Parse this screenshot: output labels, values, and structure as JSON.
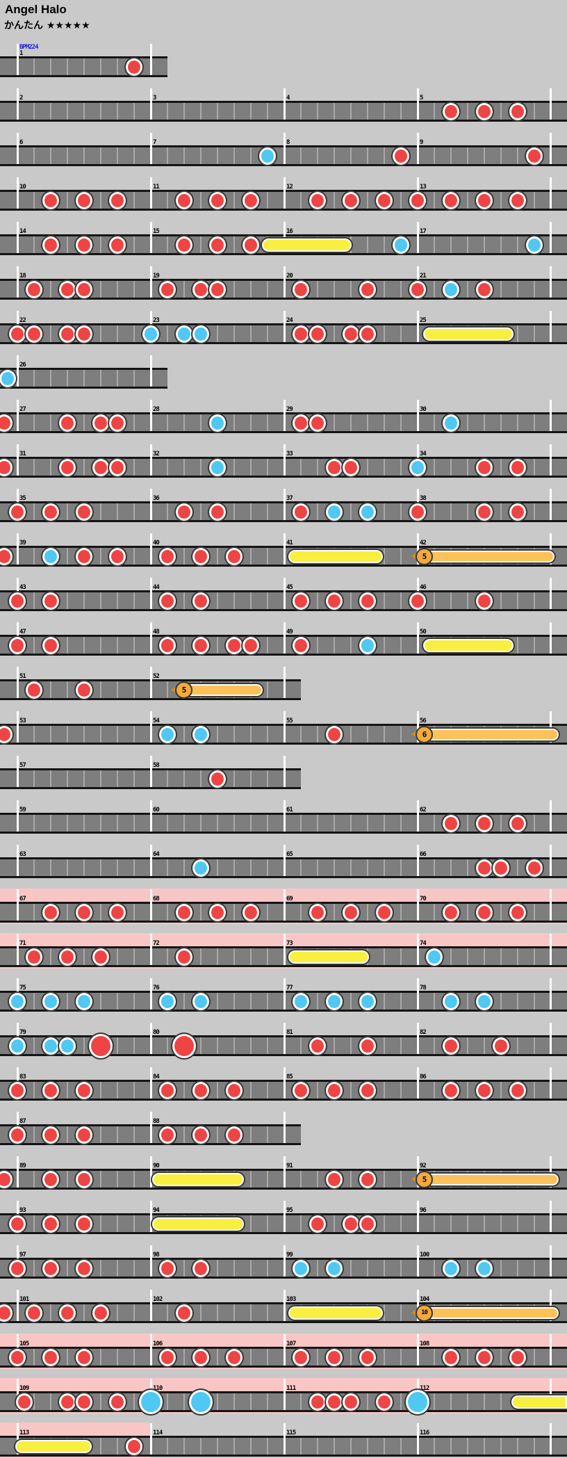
{
  "header": {
    "title": "Angel Halo",
    "difficulty_label": "かんたん",
    "stars": "★★★★★",
    "bpm_label": "BPM224"
  },
  "colors": {
    "don": "#ef4444",
    "ka": "#4fc8f2",
    "drumroll": "#f8ef41",
    "balloon_bar": "#fcc159",
    "balloon_head": "#f2a93e",
    "gogo_background": "#f9c6c6",
    "lane": "#7e7e7e",
    "page_background": "#c9c9c9"
  },
  "legend": {
    "don": "red-note",
    "ka": "blue-note",
    "donB": "big-red-note",
    "kaB": "big-blue-note",
    "roll": "drumroll-bar",
    "rollF": "drumroll-bar-continues",
    "bal": "balloon-note"
  },
  "rows": [
    {
      "start": 1,
      "mcount": 1,
      "bpm": true,
      "measures": [
        [
          [
            "don",
            7
          ]
        ]
      ]
    },
    {
      "start": 2,
      "mcount": 4,
      "measures": [
        [],
        [],
        [],
        [
          [
            "don",
            2
          ],
          [
            "don",
            4
          ],
          [
            "don",
            6
          ]
        ]
      ]
    },
    {
      "start": 6,
      "mcount": 4,
      "measures": [
        [],
        [
          [
            "ka",
            7
          ]
        ],
        [
          [
            "don",
            7
          ]
        ],
        [
          [
            "don",
            7
          ]
        ]
      ]
    },
    {
      "start": 10,
      "mcount": 4,
      "measures": [
        [
          [
            "don",
            2
          ],
          [
            "don",
            4
          ],
          [
            "don",
            6
          ]
        ],
        [
          [
            "don",
            2
          ],
          [
            "don",
            4
          ],
          [
            "don",
            6
          ]
        ],
        [
          [
            "don",
            2
          ],
          [
            "don",
            4
          ],
          [
            "don",
            6
          ]
        ],
        [
          [
            "don",
            0
          ],
          [
            "don",
            2
          ],
          [
            "don",
            4
          ],
          [
            "don",
            6
          ]
        ]
      ]
    },
    {
      "start": 14,
      "mcount": 4,
      "measures": [
        [
          [
            "don",
            2
          ],
          [
            "don",
            4
          ],
          [
            "don",
            6
          ]
        ],
        [
          [
            "don",
            2
          ],
          [
            "don",
            4
          ],
          [
            "don",
            6
          ]
        ],
        [
          [
            "roll",
            375,
            508
          ],
          [
            "ka",
            7
          ]
        ],
        [
          [
            "ka",
            7
          ]
        ]
      ]
    },
    {
      "start": 18,
      "mcount": 4,
      "measures": [
        [
          [
            "don",
            1
          ],
          [
            "don",
            3
          ],
          [
            "don",
            4
          ]
        ],
        [
          [
            "don",
            1
          ],
          [
            "don",
            3
          ],
          [
            "don",
            4
          ]
        ],
        [
          [
            "don",
            1
          ],
          [
            "don",
            5
          ]
        ],
        [
          [
            "don",
            0
          ],
          [
            "ka",
            2
          ],
          [
            "don",
            4
          ]
        ]
      ]
    },
    {
      "start": 22,
      "mcount": 4,
      "measures": [
        [
          [
            "don",
            0
          ],
          [
            "don",
            1
          ],
          [
            "don",
            3
          ],
          [
            "don",
            4
          ]
        ],
        [
          [
            "ka",
            0
          ],
          [
            "ka",
            2
          ],
          [
            "ka",
            3
          ]
        ],
        [
          [
            "don",
            1
          ],
          [
            "don",
            2
          ],
          [
            "don",
            4
          ],
          [
            "don",
            5
          ]
        ],
        [
          [
            "roll",
            607,
            741
          ]
        ]
      ]
    },
    {
      "start": 26,
      "mcount": 1,
      "measures": [
        [
          [
            "ka",
            -0.6
          ]
        ]
      ]
    },
    {
      "start": 27,
      "mcount": 4,
      "measures": [
        [
          [
            "don",
            -0.8
          ],
          [
            "don",
            3
          ],
          [
            "don",
            5
          ],
          [
            "don",
            6
          ]
        ],
        [
          [
            "ka",
            4
          ]
        ],
        [
          [
            "don",
            1
          ],
          [
            "don",
            2
          ]
        ],
        [
          [
            "ka",
            2
          ]
        ]
      ]
    },
    {
      "start": 31,
      "mcount": 4,
      "measures": [
        [
          [
            "don",
            -0.8
          ],
          [
            "don",
            3
          ],
          [
            "don",
            5
          ],
          [
            "don",
            6
          ]
        ],
        [
          [
            "ka",
            4
          ]
        ],
        [
          [
            "don",
            3
          ],
          [
            "don",
            4
          ]
        ],
        [
          [
            "ka",
            0
          ],
          [
            "don",
            4
          ],
          [
            "don",
            6
          ]
        ]
      ]
    },
    {
      "start": 35,
      "mcount": 4,
      "measures": [
        [
          [
            "don",
            0
          ],
          [
            "don",
            2
          ],
          [
            "don",
            4
          ]
        ],
        [
          [
            "don",
            2
          ],
          [
            "don",
            4
          ]
        ],
        [
          [
            "don",
            1
          ],
          [
            "ka",
            3
          ],
          [
            "ka",
            5
          ]
        ],
        [
          [
            "don",
            0
          ],
          [
            "don",
            4
          ],
          [
            "don",
            6
          ]
        ]
      ]
    },
    {
      "start": 39,
      "mcount": 4,
      "measures": [
        [
          [
            "don",
            -0.8
          ],
          [
            "ka",
            2
          ],
          [
            "don",
            4
          ],
          [
            "don",
            6
          ]
        ],
        [
          [
            "don",
            1
          ],
          [
            "don",
            3
          ],
          [
            "don",
            5
          ]
        ],
        [
          [
            "roll",
            413,
            553
          ]
        ],
        [
          [
            "bal",
            598,
            800,
            "5"
          ]
        ]
      ]
    },
    {
      "start": 43,
      "mcount": 4,
      "measures": [
        [
          [
            "don",
            0
          ],
          [
            "don",
            2
          ]
        ],
        [
          [
            "don",
            1
          ],
          [
            "don",
            3
          ]
        ],
        [
          [
            "don",
            1
          ],
          [
            "don",
            3
          ],
          [
            "don",
            5
          ]
        ],
        [
          [
            "don",
            0
          ],
          [
            "don",
            4
          ]
        ]
      ]
    },
    {
      "start": 47,
      "mcount": 4,
      "measures": [
        [
          [
            "don",
            0
          ],
          [
            "don",
            2
          ]
        ],
        [
          [
            "don",
            1
          ],
          [
            "don",
            3
          ],
          [
            "don",
            5
          ],
          [
            "don",
            6
          ]
        ],
        [
          [
            "don",
            1
          ],
          [
            "ka",
            5
          ]
        ],
        [
          [
            "roll",
            607,
            741
          ]
        ]
      ]
    },
    {
      "start": 51,
      "mcount": 2,
      "measures": [
        [
          [
            "don",
            1
          ],
          [
            "don",
            4
          ]
        ],
        [
          [
            "bal",
            252,
            380,
            "5"
          ]
        ]
      ]
    },
    {
      "start": 53,
      "mcount": 4,
      "measures": [
        [
          [
            "don",
            -0.8
          ]
        ],
        [
          [
            "ka",
            1
          ],
          [
            "ka",
            3
          ]
        ],
        [
          [
            "don",
            3
          ]
        ],
        [
          [
            "bal",
            598,
            806,
            "6"
          ]
        ]
      ]
    },
    {
      "start": 57,
      "mcount": 2,
      "measures": [
        [],
        [
          [
            "don",
            4
          ]
        ]
      ]
    },
    {
      "start": 59,
      "mcount": 4,
      "measures": [
        [],
        [],
        [],
        [
          [
            "don",
            2
          ],
          [
            "don",
            4
          ],
          [
            "don",
            6
          ]
        ]
      ]
    },
    {
      "start": 63,
      "mcount": 4,
      "measures": [
        [],
        [
          [
            "ka",
            3
          ]
        ],
        [],
        [
          [
            "don",
            4
          ],
          [
            "don",
            5
          ],
          [
            "don",
            7
          ]
        ]
      ]
    },
    {
      "start": 67,
      "mcount": 4,
      "gogo": true,
      "measures": [
        [
          [
            "don",
            2
          ],
          [
            "don",
            4
          ],
          [
            "don",
            6
          ]
        ],
        [
          [
            "don",
            2
          ],
          [
            "don",
            4
          ],
          [
            "don",
            6
          ]
        ],
        [
          [
            "don",
            2
          ],
          [
            "don",
            4
          ],
          [
            "don",
            6
          ]
        ],
        [
          [
            "don",
            2
          ],
          [
            "don",
            4
          ],
          [
            "don",
            6
          ]
        ]
      ]
    },
    {
      "start": 71,
      "mcount": 4,
      "gogo": true,
      "measures": [
        [
          [
            "don",
            1
          ],
          [
            "don",
            3
          ],
          [
            "don",
            5
          ]
        ],
        [
          [
            "don",
            2
          ]
        ],
        [
          [
            "roll",
            413,
            533
          ]
        ],
        [
          [
            "ka",
            1
          ]
        ]
      ]
    },
    {
      "start": 75,
      "mcount": 4,
      "measures": [
        [
          [
            "ka",
            0
          ],
          [
            "ka",
            2
          ],
          [
            "ka",
            4
          ]
        ],
        [
          [
            "ka",
            1
          ],
          [
            "ka",
            3
          ]
        ],
        [
          [
            "ka",
            1
          ],
          [
            "ka",
            3
          ],
          [
            "ka",
            5
          ]
        ],
        [
          [
            "ka",
            2
          ],
          [
            "ka",
            4
          ]
        ]
      ]
    },
    {
      "start": 79,
      "mcount": 4,
      "measures": [
        [
          [
            "ka",
            0
          ],
          [
            "ka",
            2
          ],
          [
            "ka",
            3
          ],
          [
            "donB",
            5
          ]
        ],
        [
          [
            "donB",
            2
          ]
        ],
        [
          [
            "don",
            2
          ],
          [
            "don",
            5
          ]
        ],
        [
          [
            "don",
            2
          ],
          [
            "don",
            5
          ]
        ]
      ]
    },
    {
      "start": 83,
      "mcount": 4,
      "measures": [
        [
          [
            "don",
            0
          ],
          [
            "don",
            2
          ],
          [
            "don",
            4
          ]
        ],
        [
          [
            "don",
            1
          ],
          [
            "don",
            3
          ],
          [
            "don",
            5
          ]
        ],
        [
          [
            "don",
            1
          ],
          [
            "don",
            3
          ],
          [
            "don",
            5
          ]
        ],
        [
          [
            "don",
            2
          ],
          [
            "don",
            4
          ],
          [
            "don",
            6
          ]
        ]
      ]
    },
    {
      "start": 87,
      "mcount": 2,
      "measures": [
        [
          [
            "don",
            0
          ],
          [
            "don",
            2
          ],
          [
            "don",
            4
          ]
        ],
        [
          [
            "don",
            1
          ],
          [
            "don",
            3
          ],
          [
            "don",
            5
          ]
        ]
      ]
    },
    {
      "start": 89,
      "mcount": 4,
      "measures": [
        [
          [
            "don",
            -0.8
          ],
          [
            "don",
            2
          ],
          [
            "don",
            4
          ]
        ],
        [
          [
            "roll",
            217,
            353
          ]
        ],
        [
          [
            "don",
            3
          ],
          [
            "don",
            5
          ]
        ],
        [
          [
            "bal",
            598,
            806,
            "5"
          ]
        ]
      ]
    },
    {
      "start": 93,
      "mcount": 4,
      "measures": [
        [
          [
            "don",
            0
          ],
          [
            "don",
            2
          ],
          [
            "don",
            4
          ]
        ],
        [
          [
            "roll",
            217,
            353
          ]
        ],
        [
          [
            "don",
            2
          ],
          [
            "don",
            4
          ],
          [
            "don",
            5
          ]
        ],
        []
      ]
    },
    {
      "start": 97,
      "mcount": 4,
      "measures": [
        [
          [
            "don",
            0
          ],
          [
            "don",
            2
          ],
          [
            "don",
            4
          ]
        ],
        [
          [
            "don",
            1
          ],
          [
            "don",
            3
          ]
        ],
        [
          [
            "ka",
            1
          ],
          [
            "ka",
            3
          ]
        ],
        [
          [
            "ka",
            2
          ],
          [
            "ka",
            4
          ]
        ]
      ]
    },
    {
      "start": 101,
      "mcount": 4,
      "measures": [
        [
          [
            "don",
            -0.8
          ],
          [
            "don",
            1
          ],
          [
            "don",
            3
          ],
          [
            "don",
            5
          ]
        ],
        [
          [
            "don",
            2
          ]
        ],
        [
          [
            "roll",
            413,
            553
          ]
        ],
        [
          [
            "bal",
            598,
            806,
            "10"
          ]
        ]
      ]
    },
    {
      "start": 105,
      "mcount": 4,
      "gogo": true,
      "measures": [
        [
          [
            "don",
            0
          ],
          [
            "don",
            2
          ],
          [
            "don",
            4
          ]
        ],
        [
          [
            "don",
            1
          ],
          [
            "don",
            3
          ],
          [
            "don",
            5
          ]
        ],
        [
          [
            "don",
            1
          ],
          [
            "don",
            3
          ],
          [
            "don",
            5
          ]
        ],
        [
          [
            "don",
            2
          ],
          [
            "don",
            4
          ],
          [
            "don",
            6
          ]
        ]
      ]
    },
    {
      "start": 109,
      "mcount": 4,
      "gogo": true,
      "measures": [
        [
          [
            "don",
            0.4
          ],
          [
            "don",
            3
          ],
          [
            "don",
            4
          ],
          [
            "don",
            6
          ]
        ],
        [
          [
            "kaB",
            0
          ],
          [
            "kaB",
            3
          ]
        ],
        [
          [
            "don",
            2
          ],
          [
            "don",
            3
          ],
          [
            "don",
            4
          ],
          [
            "don",
            6
          ]
        ],
        [
          [
            "kaB",
            0
          ],
          [
            "rollF",
            734,
            816
          ]
        ]
      ]
    },
    {
      "start": 113,
      "mcount": 4,
      "gogo": true,
      "gogoWidth": 216,
      "measures": [
        [
          [
            "roll",
            20,
            134
          ],
          [
            "don",
            7
          ]
        ],
        [],
        [],
        []
      ]
    }
  ]
}
